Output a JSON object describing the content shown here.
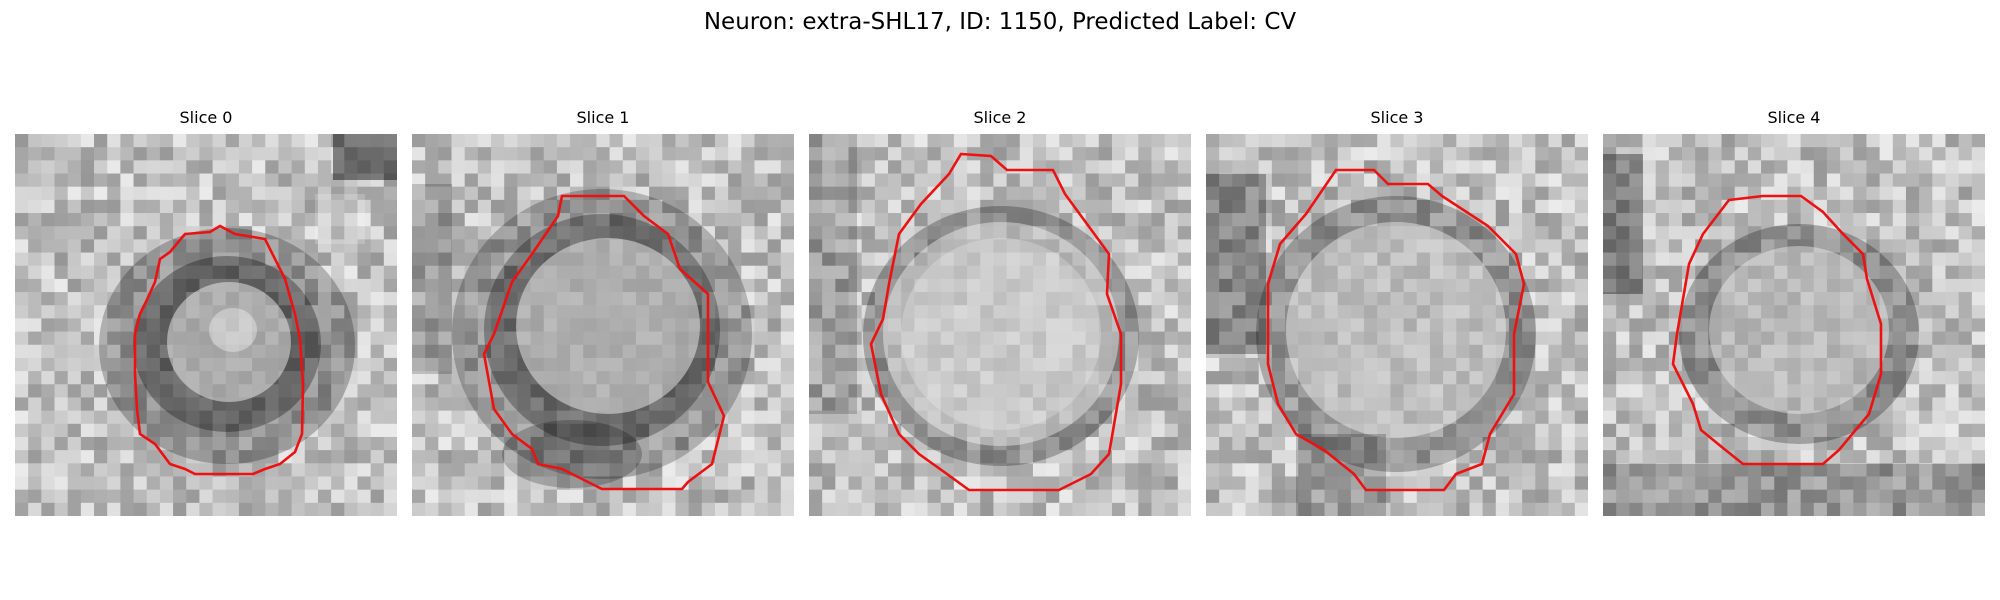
{
  "figure": {
    "title": "Neuron: extra-SHL17, ID: 1150, Predicted Label: CV"
  },
  "panels": [
    {
      "title": "Slice 0"
    },
    {
      "title": "Slice 1"
    },
    {
      "title": "Slice 2"
    },
    {
      "title": "Slice 3"
    },
    {
      "title": "Slice 4"
    }
  ],
  "colors": {
    "contour": "#ee1111",
    "background": "#ffffff"
  }
}
